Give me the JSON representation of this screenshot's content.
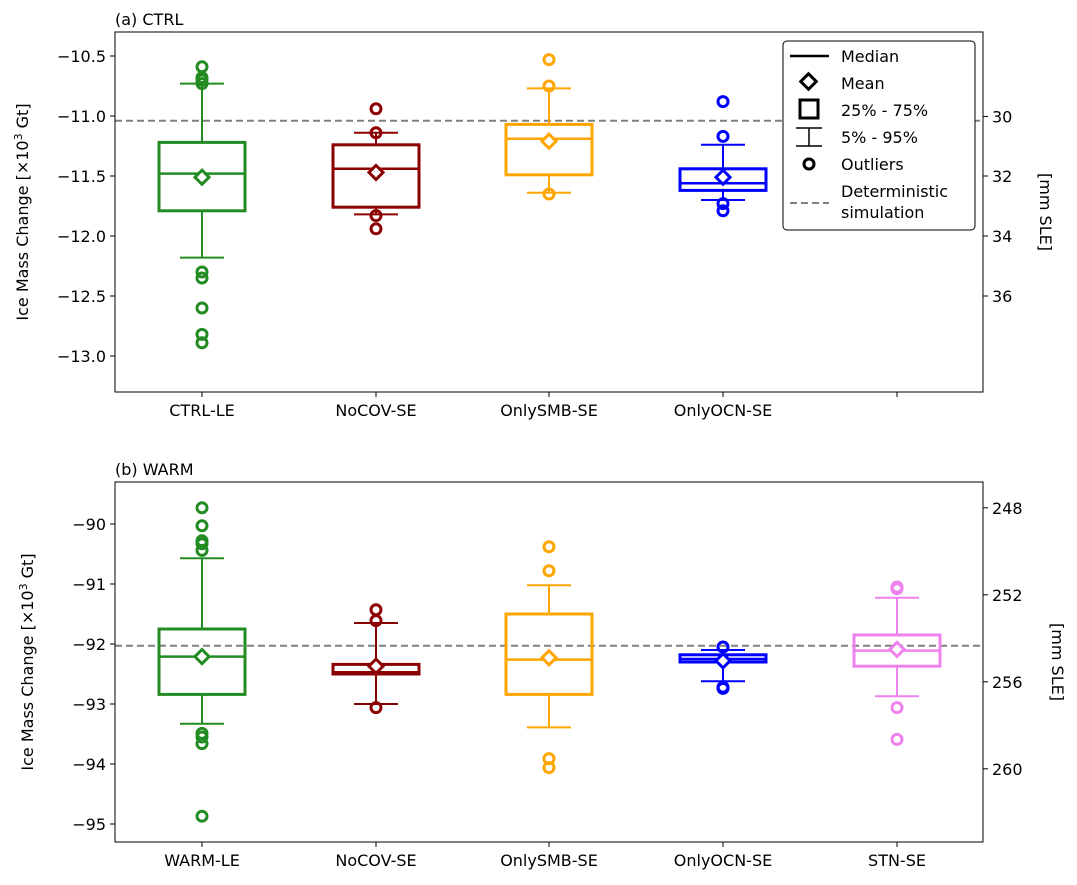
{
  "legend": {
    "median": "Median",
    "mean": "Mean",
    "iqr": "25% - 75%",
    "whisker": "5% - 95%",
    "outliers": "Outliers",
    "deterministic_line1": "Deterministic",
    "deterministic_line2": "simulation"
  },
  "colors": {
    "green": "#228B22",
    "darkred": "#8B0000",
    "orange": "#FFA500",
    "blue": "#0000FF",
    "violet": "#EE82EE",
    "dashed": "#808080"
  },
  "chart_data": [
    {
      "type": "box",
      "title": "(a) CTRL",
      "ylabel": "Ice Mass Change [×10³ Gt]",
      "ylabel_right": "[mm SLE]",
      "ylim": [
        -13.3,
        -10.3
      ],
      "yticks": [
        -13.0,
        -12.5,
        -12.0,
        -11.5,
        -11.0,
        -10.5
      ],
      "ytick_labels": [
        "−13.0",
        "−12.5",
        "−12.0",
        "−11.5",
        "−11.0",
        "−10.5"
      ],
      "right_ticks": [
        30,
        32,
        34,
        36
      ],
      "right_ticks_value": [
        -11.004,
        -11.5,
        -12.0,
        -12.5
      ],
      "categories": [
        "CTRL-LE",
        "NoCOV-SE",
        "OnlySMB-SE",
        "OnlyOCN-SE",
        ""
      ],
      "deterministic": -11.04,
      "boxes": [
        {
          "name": "CTRL-LE",
          "color": "#228B22",
          "q1": -11.79,
          "median": -11.48,
          "q3": -11.22,
          "mean": -11.51,
          "whisker_low": -12.18,
          "whisker_high": -10.73,
          "outliers": [
            -10.59,
            -10.68,
            -10.7,
            -10.73,
            -12.3,
            -12.35,
            -12.6,
            -12.82,
            -12.89
          ]
        },
        {
          "name": "NoCOV-SE",
          "color": "#8B0000",
          "q1": -11.76,
          "median": -11.44,
          "q3": -11.24,
          "mean": -11.47,
          "whisker_low": -11.82,
          "whisker_high": -11.14,
          "outliers": [
            -10.94,
            -11.14,
            -11.83,
            -11.94
          ]
        },
        {
          "name": "OnlySMB-SE",
          "color": "#FFA500",
          "q1": -11.49,
          "median": -11.19,
          "q3": -11.07,
          "mean": -11.21,
          "whisker_low": -11.64,
          "whisker_high": -10.77,
          "outliers": [
            -10.53,
            -10.75,
            -11.65
          ]
        },
        {
          "name": "OnlyOCN-SE",
          "color": "#0000FF",
          "q1": -11.62,
          "median": -11.56,
          "q3": -11.44,
          "mean": -11.51,
          "whisker_low": -11.7,
          "whisker_high": -11.24,
          "outliers": [
            -10.88,
            -11.17,
            -11.73,
            -11.79
          ]
        }
      ]
    },
    {
      "type": "box",
      "title": "(b) WARM",
      "ylabel": "Ice Mass Change [×10³ Gt]",
      "ylabel_right": "[mm SLE]",
      "ylim": [
        -95.3,
        -89.3
      ],
      "yticks": [
        -95,
        -94,
        -93,
        -92,
        -91,
        -90
      ],
      "ytick_labels": [
        "−95",
        "−94",
        "−93",
        "−92",
        "−91",
        "−90"
      ],
      "right_ticks": [
        248,
        252,
        256,
        260
      ],
      "right_ticks_value": [
        -89.73,
        -91.18,
        -92.63,
        -94.08
      ],
      "categories": [
        "WARM-LE",
        "NoCOV-SE",
        "OnlySMB-SE",
        "OnlyOCN-SE",
        "STN-SE"
      ],
      "deterministic": -92.03,
      "boxes": [
        {
          "name": "WARM-LE",
          "color": "#228B22",
          "q1": -92.84,
          "median": -92.21,
          "q3": -91.75,
          "mean": -92.21,
          "whisker_low": -93.33,
          "whisker_high": -90.57,
          "outliers": [
            -89.73,
            -90.03,
            -90.28,
            -90.33,
            -90.44,
            -93.49,
            -93.55,
            -93.66,
            -94.87
          ]
        },
        {
          "name": "NoCOV-SE",
          "color": "#8B0000",
          "q1": -92.5,
          "median": -92.47,
          "q3": -92.34,
          "mean": -92.37,
          "whisker_low": -93.0,
          "whisker_high": -91.65,
          "outliers": [
            -91.43,
            -91.61,
            -93.06
          ]
        },
        {
          "name": "OnlySMB-SE",
          "color": "#FFA500",
          "q1": -92.84,
          "median": -92.26,
          "q3": -91.5,
          "mean": -92.23,
          "whisker_low": -93.39,
          "whisker_high": -91.02,
          "outliers": [
            -90.38,
            -90.78,
            -93.91,
            -94.06
          ]
        },
        {
          "name": "OnlyOCN-SE",
          "color": "#0000FF",
          "q1": -92.3,
          "median": -92.25,
          "q3": -92.18,
          "mean": -92.28,
          "whisker_low": -92.62,
          "whisker_high": -92.1,
          "outliers": [
            -92.05,
            -92.72,
            -92.74
          ]
        },
        {
          "name": "STN-SE",
          "color": "#EE82EE",
          "q1": -92.37,
          "median": -92.11,
          "q3": -91.85,
          "mean": -92.09,
          "whisker_low": -92.87,
          "whisker_high": -91.23,
          "outliers": [
            -91.05,
            -91.08,
            -93.06,
            -93.59
          ]
        }
      ]
    }
  ]
}
